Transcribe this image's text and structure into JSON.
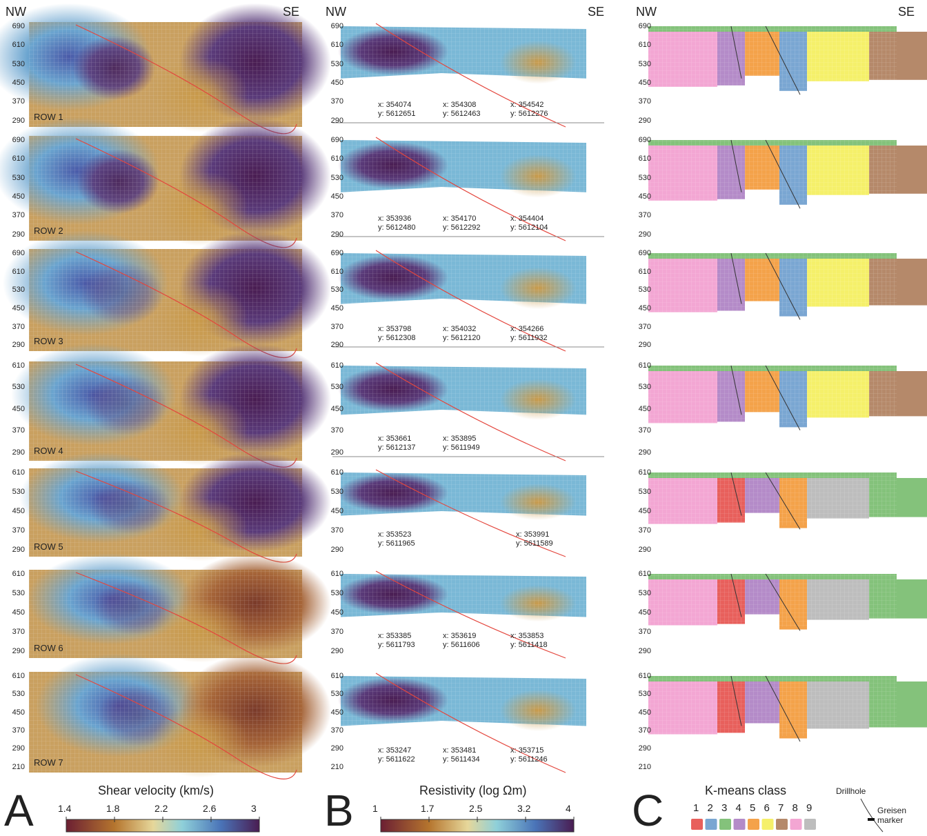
{
  "chart_data": {
    "type": "heatmap",
    "orientation": {
      "left": "NW",
      "right": "SE"
    },
    "panels": [
      {
        "letter": "A",
        "quantity": "Shear velocity (km/s)",
        "colorbar_ticks": [
          "1.4",
          "1.8",
          "2.2",
          "2.6",
          "3"
        ],
        "colorbar_range": [
          1.4,
          3.0
        ]
      },
      {
        "letter": "B",
        "quantity": "Resistivity (log Ωm)",
        "colorbar_ticks": [
          "1",
          "1.7",
          "2.5",
          "3.2",
          "4"
        ],
        "colorbar_range": [
          1,
          4
        ]
      },
      {
        "letter": "C",
        "quantity": "K-means class",
        "classes": [
          "1",
          "2",
          "3",
          "4",
          "5",
          "6",
          "7",
          "8",
          "9"
        ],
        "class_colors": [
          "#e8605c",
          "#7aa6d2",
          "#84c27b",
          "#b48bc8",
          "#f4a24a",
          "#f5f06a",
          "#b5896a",
          "#f3a6d3",
          "#bdbdbd"
        ],
        "legend_drillhole": "Drillhole",
        "legend_marker": "Greisen marker"
      }
    ],
    "rows": [
      {
        "label": "ROW 1",
        "yticks": [
          "690",
          "610",
          "530",
          "450",
          "370",
          "290"
        ],
        "coords": [
          {
            "x": "x: 354074",
            "y": "y: 5612651"
          },
          {
            "x": "x: 354308",
            "y": "y: 5612463"
          },
          {
            "x": "x: 354542",
            "y": "y: 5612276"
          }
        ]
      },
      {
        "label": "ROW 2",
        "yticks": [
          "690",
          "610",
          "530",
          "450",
          "370",
          "290"
        ],
        "coords": [
          {
            "x": "x: 353936",
            "y": "y: 5612480"
          },
          {
            "x": "x: 354170",
            "y": "y: 5612292"
          },
          {
            "x": "x: 354404",
            "y": "y: 5612104"
          }
        ]
      },
      {
        "label": "ROW 3",
        "yticks": [
          "690",
          "610",
          "530",
          "450",
          "370",
          "290"
        ],
        "coords": [
          {
            "x": "x: 353798",
            "y": "y: 5612308"
          },
          {
            "x": "x: 354032",
            "y": "y: 5612120"
          },
          {
            "x": "x: 354266",
            "y": "y: 5611932"
          }
        ]
      },
      {
        "label": "ROW 4",
        "yticks": [
          "610",
          "530",
          "450",
          "370",
          "290"
        ],
        "coords": [
          {
            "x": "x: 353661",
            "y": "y: 5612137"
          },
          {
            "x": "x: 353895",
            "y": "y: 5611949"
          }
        ]
      },
      {
        "label": "ROW 5",
        "yticks": [
          "610",
          "530",
          "450",
          "370",
          "290"
        ],
        "coords": [
          {
            "x": "x: 353523",
            "y": "y: 5611965"
          },
          {
            "x": "x: 353991",
            "y": "y: 5611589"
          }
        ]
      },
      {
        "label": "ROW 6",
        "yticks": [
          "610",
          "530",
          "450",
          "370",
          "290"
        ],
        "coords": [
          {
            "x": "x: 353385",
            "y": "y: 5611793"
          },
          {
            "x": "x: 353619",
            "y": "y: 5611606"
          },
          {
            "x": "x: 353853",
            "y": "y: 5611418"
          }
        ]
      },
      {
        "label": "ROW 7",
        "yticks": [
          "610",
          "530",
          "450",
          "370",
          "290",
          "210"
        ],
        "coords": [
          {
            "x": "x: 353247",
            "y": "y: 5611622"
          },
          {
            "x": "x: 353481",
            "y": "y: 5611434"
          },
          {
            "x": "x: 353715",
            "y": "y: 5611246"
          }
        ]
      }
    ]
  }
}
